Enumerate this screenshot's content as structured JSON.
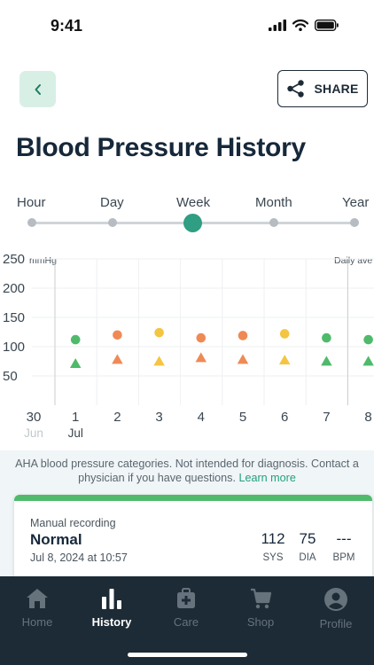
{
  "status": {
    "time": "9:41"
  },
  "header": {
    "share_label": "SHARE"
  },
  "page_title": "Blood Pressure History",
  "ranges": [
    {
      "label": "Hour",
      "active": false
    },
    {
      "label": "Day",
      "active": false
    },
    {
      "label": "Week",
      "active": true
    },
    {
      "label": "Month",
      "active": false
    },
    {
      "label": "Year",
      "active": false
    }
  ],
  "chart_data": {
    "type": "scatter",
    "ylabel": "mmHg",
    "corner_label": "Daily ave",
    "y_ticks": [
      250,
      200,
      150,
      100,
      50
    ],
    "ylim": [
      20,
      250
    ],
    "x_ticks": [
      "30",
      "1",
      "2",
      "3",
      "4",
      "5",
      "6",
      "7",
      "8"
    ],
    "x_month_labels": [
      {
        "at": "30",
        "label": "Jun"
      },
      {
        "at": "1",
        "label": "Jul"
      }
    ],
    "series": [
      {
        "marker": "circle",
        "points": [
          {
            "x": "1",
            "y": 112,
            "color": "#4fba6b"
          },
          {
            "x": "2",
            "y": 120,
            "color": "#ef8a55"
          },
          {
            "x": "3",
            "y": 124,
            "color": "#f4c542"
          },
          {
            "x": "4",
            "y": 115,
            "color": "#ef8a55"
          },
          {
            "x": "5",
            "y": 119,
            "color": "#ef8a55"
          },
          {
            "x": "6",
            "y": 122,
            "color": "#f4c542"
          },
          {
            "x": "7",
            "y": 115,
            "color": "#4fba6b"
          },
          {
            "x": "8",
            "y": 112,
            "color": "#4fba6b"
          }
        ]
      },
      {
        "marker": "triangle",
        "points": [
          {
            "x": "1",
            "y": 72,
            "color": "#4fba6b"
          },
          {
            "x": "2",
            "y": 79,
            "color": "#ef8a55"
          },
          {
            "x": "3",
            "y": 76,
            "color": "#f4c542"
          },
          {
            "x": "4",
            "y": 82,
            "color": "#ef8a55"
          },
          {
            "x": "5",
            "y": 79,
            "color": "#ef8a55"
          },
          {
            "x": "6",
            "y": 78,
            "color": "#f4c542"
          },
          {
            "x": "7",
            "y": 76,
            "color": "#4fba6b"
          },
          {
            "x": "8",
            "y": 76,
            "color": "#4fba6b"
          }
        ]
      }
    ]
  },
  "notice": {
    "text": "AHA blood pressure categories. Not intended for diagnosis. Contact a physician if you have questions.",
    "link": "Learn more"
  },
  "card": {
    "type": "Manual recording",
    "category": "Normal",
    "date": "Jul 8, 2024 at 10:57",
    "status_color": "#4fba6b",
    "readings": [
      {
        "value": "112",
        "unit": "SYS"
      },
      {
        "value": "75",
        "unit": "DIA"
      },
      {
        "value": "---",
        "unit": "BPM"
      }
    ]
  },
  "tabs": [
    {
      "label": "Home",
      "icon": "home-icon",
      "active": false
    },
    {
      "label": "History",
      "icon": "bar-chart-icon",
      "active": true
    },
    {
      "label": "Care",
      "icon": "medical-kit-icon",
      "active": false
    },
    {
      "label": "Shop",
      "icon": "cart-icon",
      "active": false
    },
    {
      "label": "Profile",
      "icon": "profile-icon",
      "active": false
    }
  ]
}
